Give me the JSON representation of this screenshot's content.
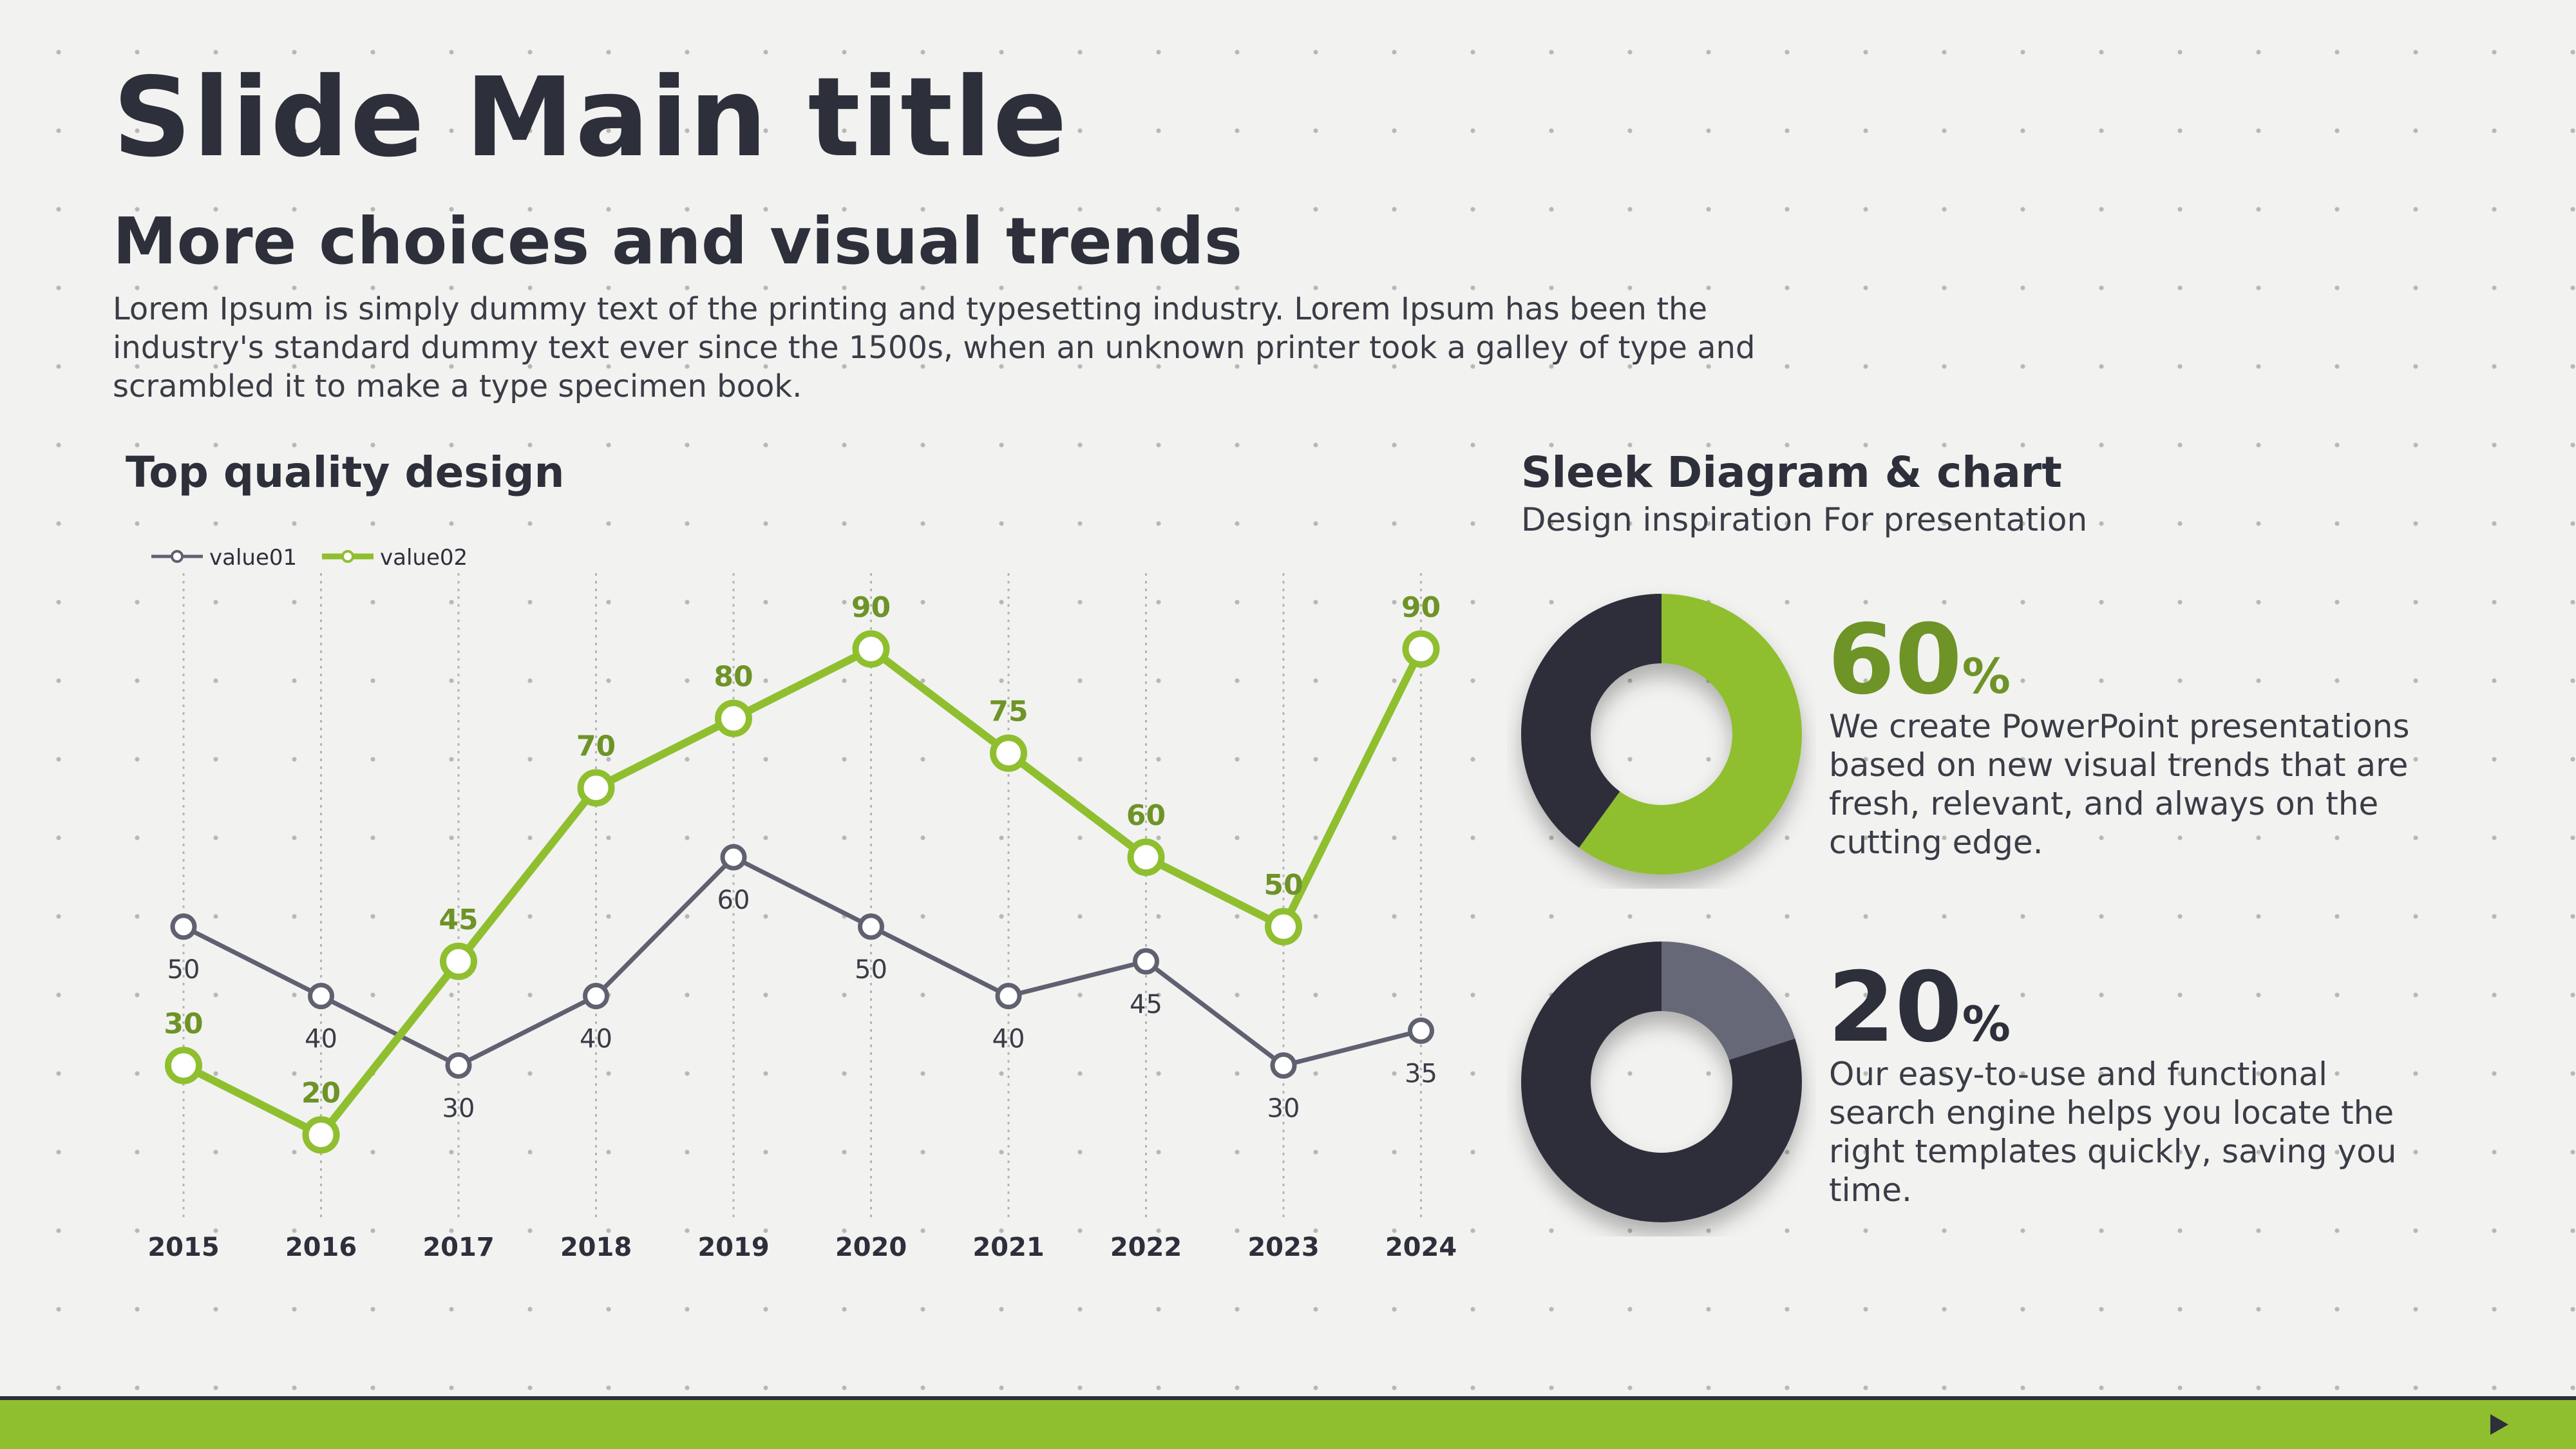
{
  "slide": {
    "title": "Slide Main title",
    "subtitle": "More choices and visual trends",
    "body": "Lorem Ipsum is simply dummy text of the printing and typesetting industry. Lorem Ipsum has been the industry's standard dummy text ever since the 1500s, when an unknown printer took a galley of type and scrambled it to make a type specimen book."
  },
  "left_panel": {
    "heading": "Top quality design"
  },
  "right_panel": {
    "heading": "Sleek Diagram & chart",
    "subheading": "Design inspiration For presentation",
    "items": [
      {
        "value": "60",
        "unit": "%",
        "text": "We create PowerPoint presentations based on new visual trends that are fresh, relevant, and always on the cutting edge."
      },
      {
        "value": "20",
        "unit": "%",
        "text": "Our easy-to-use and functional search engine helps you locate the right templates quickly, saving you time."
      }
    ]
  },
  "colors": {
    "green": "#8fbf2f",
    "green_text": "#6e9327",
    "dark": "#2d2f3a",
    "slate": "#5f6070",
    "gray_slice": "#666778"
  },
  "footer": {
    "icon": "play-icon"
  },
  "chart_data": [
    {
      "type": "line",
      "categories": [
        "2015",
        "2016",
        "2017",
        "2018",
        "2019",
        "2020",
        "2021",
        "2022",
        "2023",
        "2024"
      ],
      "series": [
        {
          "name": "value01",
          "values": [
            50,
            40,
            30,
            40,
            60,
            50,
            40,
            45,
            30,
            35
          ]
        },
        {
          "name": "value02",
          "values": [
            30,
            20,
            45,
            70,
            80,
            90,
            75,
            60,
            50,
            90
          ]
        }
      ],
      "ylim": [
        10,
        100
      ],
      "legend": "top-left",
      "grid": "vertical dotted"
    },
    {
      "type": "pie",
      "donut": true,
      "slices": [
        {
          "value": 60
        },
        {
          "value": 40
        }
      ]
    },
    {
      "type": "pie",
      "donut": true,
      "slices": [
        {
          "value": 20
        },
        {
          "value": 80
        }
      ]
    }
  ]
}
